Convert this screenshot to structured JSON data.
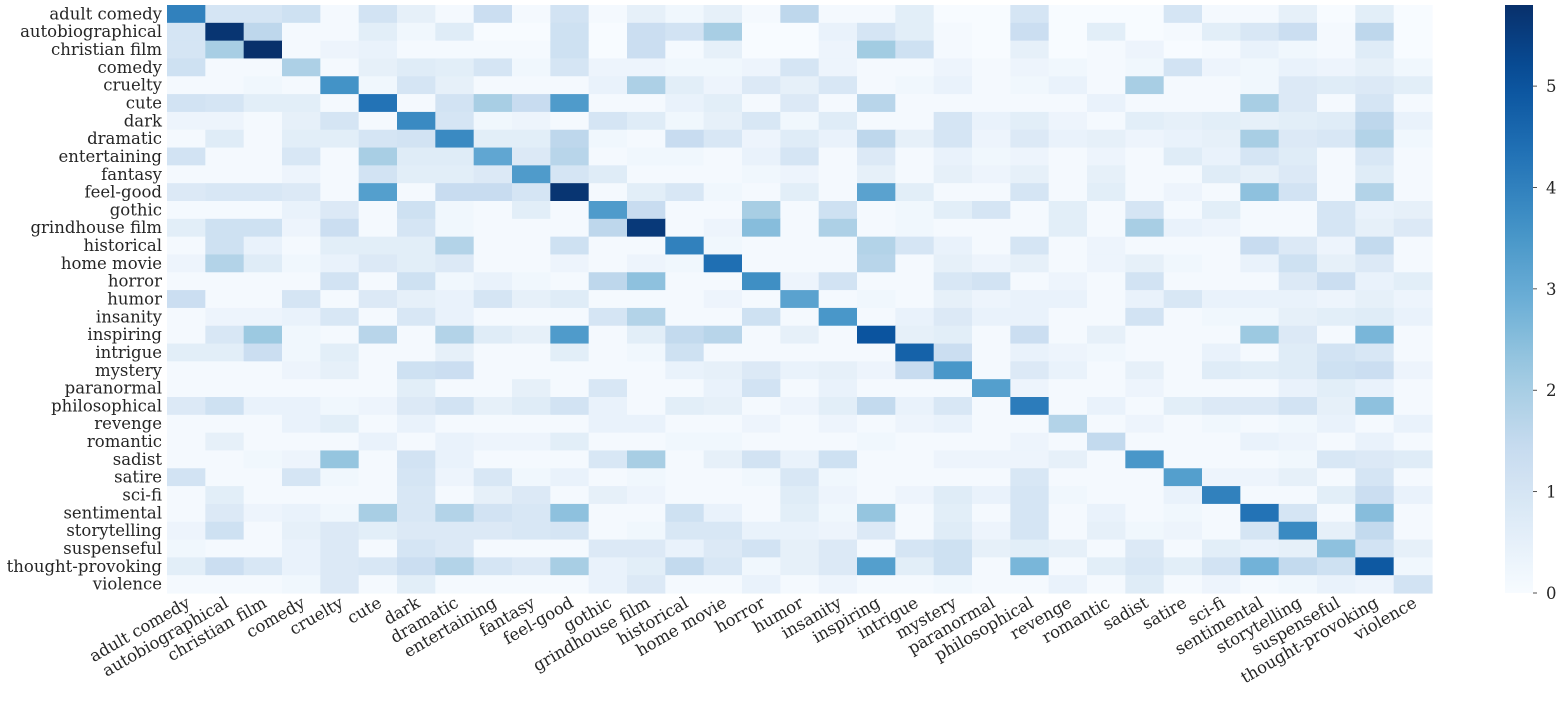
{
  "chart_data": {
    "type": "heatmap",
    "title": "",
    "xlabel": "",
    "ylabel": "",
    "x": [
      "adult comedy",
      "autobiographical",
      "christian film",
      "comedy",
      "cruelty",
      "cute",
      "dark",
      "dramatic",
      "entertaining",
      "fantasy",
      "feel-good",
      "gothic",
      "grindhouse film",
      "historical",
      "home movie",
      "horror",
      "humor",
      "insanity",
      "inspiring",
      "intrigue",
      "mystery",
      "paranormal",
      "philosophical",
      "revenge",
      "romantic",
      "sadist",
      "satire",
      "sci-fi",
      "sentimental",
      "storytelling",
      "suspenseful",
      "thought-provoking",
      "violence"
    ],
    "y": [
      "adult comedy",
      "autobiographical",
      "christian film",
      "comedy",
      "cruelty",
      "cute",
      "dark",
      "dramatic",
      "entertaining",
      "fantasy",
      "feel-good",
      "gothic",
      "grindhouse film",
      "historical",
      "home movie",
      "horror",
      "humor",
      "insanity",
      "inspiring",
      "intrigue",
      "mystery",
      "paranormal",
      "philosophical",
      "revenge",
      "romantic",
      "sadist",
      "satire",
      "sci-fi",
      "sentimental",
      "storytelling",
      "suspenseful",
      "thought-provoking",
      "violence"
    ],
    "values": [
      [
        4.0,
        1.0,
        1.0,
        1.2,
        0.1,
        1.1,
        0.5,
        0.1,
        1.3,
        0.1,
        1.1,
        0.1,
        0.5,
        0.2,
        0.5,
        0.1,
        1.6,
        0.1,
        0.1,
        0.6,
        0.0,
        0.0,
        1.0,
        0.0,
        0.0,
        0.0,
        1.0,
        0.1,
        0.1,
        0.5,
        0.0,
        0.6,
        0.0
      ],
      [
        1.0,
        5.7,
        1.6,
        0.1,
        0.1,
        0.6,
        0.2,
        0.7,
        0.0,
        0.0,
        1.2,
        0.0,
        1.3,
        1.1,
        2.0,
        0.0,
        0.0,
        0.4,
        1.0,
        0.6,
        0.1,
        0.0,
        1.3,
        0.0,
        0.6,
        0.0,
        0.1,
        0.6,
        0.9,
        1.3,
        0.1,
        1.6,
        0.0
      ],
      [
        1.0,
        2.0,
        5.8,
        0.1,
        0.3,
        0.4,
        0.1,
        0.1,
        0.1,
        0.1,
        1.2,
        0.0,
        1.3,
        0.1,
        0.5,
        0.0,
        0.0,
        0.3,
        2.1,
        1.2,
        0.1,
        0.0,
        0.5,
        0.0,
        0.1,
        0.3,
        0.0,
        0.1,
        0.4,
        0.2,
        0.1,
        0.7,
        0.0
      ],
      [
        1.2,
        0.1,
        0.1,
        1.9,
        0.1,
        0.5,
        0.7,
        0.6,
        1.0,
        0.2,
        1.0,
        0.3,
        0.3,
        0.2,
        0.2,
        0.3,
        1.0,
        0.3,
        0.1,
        0.1,
        0.3,
        0.1,
        0.3,
        0.2,
        0.1,
        0.2,
        1.1,
        0.3,
        0.2,
        0.4,
        0.3,
        0.5,
        0.2
      ],
      [
        0.1,
        0.1,
        0.2,
        0.1,
        3.6,
        0.2,
        1.0,
        0.5,
        0.1,
        0.1,
        0.1,
        0.4,
        1.9,
        0.6,
        0.3,
        0.8,
        0.5,
        0.9,
        0.1,
        0.2,
        0.4,
        0.1,
        0.2,
        0.4,
        0.1,
        2.0,
        0.1,
        0.1,
        0.2,
        0.8,
        0.7,
        0.8,
        0.6
      ],
      [
        1.1,
        1.0,
        0.6,
        0.6,
        0.1,
        4.3,
        0.1,
        1.1,
        2.0,
        1.4,
        3.4,
        0.1,
        0.1,
        0.4,
        0.6,
        0.1,
        0.8,
        0.1,
        1.7,
        0.1,
        0.1,
        0.1,
        0.1,
        0.1,
        0.4,
        0.1,
        0.1,
        0.1,
        2.0,
        0.8,
        0.1,
        1.0,
        0.1
      ],
      [
        0.3,
        0.3,
        0.1,
        0.5,
        1.0,
        0.1,
        3.8,
        1.0,
        0.2,
        0.3,
        0.1,
        1.0,
        0.7,
        0.2,
        0.5,
        0.9,
        0.2,
        0.7,
        0.1,
        0.1,
        1.0,
        0.4,
        0.6,
        0.3,
        0.1,
        0.6,
        0.5,
        0.6,
        0.5,
        0.6,
        0.7,
        1.6,
        0.4
      ],
      [
        0.1,
        0.7,
        0.1,
        0.6,
        0.6,
        1.0,
        1.1,
        3.8,
        0.6,
        0.6,
        1.6,
        0.2,
        0.1,
        1.4,
        0.9,
        0.3,
        0.7,
        0.4,
        1.6,
        0.5,
        1.0,
        0.3,
        0.8,
        0.4,
        0.5,
        0.3,
        0.4,
        0.5,
        2.0,
        0.8,
        0.9,
        1.8,
        0.2
      ],
      [
        1.1,
        0.1,
        0.1,
        0.9,
        0.1,
        2.0,
        0.7,
        0.7,
        3.1,
        0.8,
        1.7,
        0.1,
        0.2,
        0.2,
        0.1,
        0.4,
        1.0,
        0.1,
        0.8,
        0.1,
        0.4,
        0.2,
        0.3,
        0.1,
        0.3,
        0.1,
        0.7,
        0.4,
        1.0,
        0.7,
        0.1,
        0.9,
        0.1
      ],
      [
        0.1,
        0.1,
        0.1,
        0.3,
        0.1,
        1.1,
        0.6,
        0.6,
        0.8,
        3.4,
        1.0,
        0.7,
        0.1,
        0.1,
        0.1,
        0.2,
        0.3,
        0.1,
        0.5,
        0.1,
        0.5,
        0.3,
        0.5,
        0.1,
        0.5,
        0.1,
        0.1,
        0.7,
        0.5,
        0.8,
        0.1,
        0.7,
        0.1
      ],
      [
        0.8,
        0.9,
        0.9,
        0.8,
        0.1,
        3.3,
        0.1,
        1.4,
        1.4,
        1.0,
        5.7,
        0.1,
        0.6,
        0.9,
        0.2,
        0.1,
        0.6,
        0.1,
        3.2,
        0.6,
        0.1,
        0.1,
        1.0,
        0.1,
        0.6,
        0.1,
        0.3,
        0.1,
        2.4,
        1.1,
        0.1,
        1.8,
        0.1
      ],
      [
        0.1,
        0.1,
        0.1,
        0.4,
        0.8,
        0.1,
        1.2,
        0.2,
        0.1,
        0.6,
        0.1,
        3.4,
        1.4,
        0.1,
        0.1,
        2.0,
        0.1,
        1.2,
        0.1,
        0.2,
        0.6,
        1.0,
        0.1,
        0.6,
        0.1,
        1.0,
        0.1,
        0.6,
        0.1,
        0.1,
        1.0,
        0.4,
        0.5
      ],
      [
        0.6,
        1.2,
        1.2,
        0.3,
        1.3,
        0.1,
        1.0,
        0.2,
        0.1,
        0.1,
        0.1,
        1.6,
        5.6,
        0.1,
        0.3,
        2.5,
        0.1,
        1.9,
        0.1,
        0.2,
        0.1,
        0.1,
        0.1,
        0.6,
        0.1,
        2.0,
        0.4,
        0.3,
        0.1,
        0.1,
        1.0,
        0.5,
        0.8
      ],
      [
        0.1,
        1.2,
        0.4,
        0.1,
        0.6,
        0.6,
        0.6,
        1.8,
        0.1,
        0.1,
        1.2,
        0.1,
        0.1,
        4.0,
        0.2,
        0.1,
        0.1,
        0.1,
        1.8,
        1.0,
        0.4,
        0.1,
        1.0,
        0.1,
        0.3,
        0.1,
        0.1,
        0.1,
        1.4,
        0.8,
        0.3,
        1.5,
        0.1
      ],
      [
        0.3,
        1.8,
        0.7,
        0.2,
        0.4,
        0.8,
        0.6,
        0.8,
        0.1,
        0.1,
        0.3,
        0.1,
        0.3,
        0.2,
        4.4,
        0.1,
        0.1,
        0.1,
        1.7,
        0.1,
        0.5,
        0.3,
        0.5,
        0.1,
        0.3,
        0.5,
        0.2,
        0.1,
        0.4,
        1.2,
        0.5,
        0.8,
        0.1
      ],
      [
        0.1,
        0.1,
        0.1,
        0.1,
        1.1,
        0.1,
        1.2,
        0.2,
        0.4,
        0.2,
        0.1,
        1.6,
        2.4,
        0.1,
        0.1,
        3.7,
        0.3,
        1.1,
        0.1,
        0.1,
        0.9,
        1.1,
        0.1,
        0.3,
        0.1,
        1.1,
        0.1,
        0.1,
        0.1,
        0.8,
        1.3,
        0.4,
        0.6
      ],
      [
        1.3,
        0.1,
        0.1,
        1.0,
        0.1,
        0.8,
        0.5,
        0.4,
        1.0,
        0.5,
        0.7,
        0.1,
        0.1,
        0.1,
        0.3,
        0.1,
        3.2,
        0.1,
        0.2,
        0.1,
        0.5,
        0.3,
        0.4,
        0.4,
        0.1,
        0.4,
        0.9,
        0.4,
        0.4,
        0.4,
        0.3,
        0.5,
        0.3
      ],
      [
        0.1,
        0.3,
        0.3,
        0.4,
        0.9,
        0.1,
        0.9,
        0.4,
        0.1,
        0.1,
        0.1,
        1.0,
        1.8,
        0.1,
        0.1,
        1.2,
        0.1,
        3.5,
        0.1,
        0.4,
        0.8,
        0.4,
        0.4,
        0.1,
        0.1,
        1.1,
        0.1,
        0.2,
        0.2,
        0.5,
        0.6,
        0.7,
        0.4
      ],
      [
        0.1,
        0.9,
        2.2,
        0.2,
        0.1,
        1.7,
        0.1,
        1.8,
        0.7,
        0.5,
        3.4,
        0.1,
        0.6,
        1.5,
        1.7,
        0.1,
        0.5,
        0.1,
        5.0,
        0.5,
        0.6,
        0.1,
        1.3,
        0.1,
        0.5,
        0.1,
        0.1,
        0.1,
        2.2,
        0.8,
        0.1,
        2.7,
        0.1
      ],
      [
        0.6,
        0.6,
        1.3,
        0.2,
        0.6,
        0.1,
        0.1,
        0.5,
        0.1,
        0.1,
        0.6,
        0.1,
        0.2,
        1.2,
        0.1,
        0.1,
        0.1,
        0.1,
        0.1,
        4.7,
        1.3,
        0.1,
        0.4,
        0.3,
        0.2,
        0.1,
        0.1,
        0.4,
        0.1,
        0.7,
        1.1,
        0.9,
        0.1
      ],
      [
        0.1,
        0.1,
        0.1,
        0.3,
        0.5,
        0.1,
        1.2,
        1.3,
        0.1,
        0.1,
        0.1,
        0.1,
        0.1,
        0.4,
        0.5,
        0.8,
        0.4,
        0.5,
        0.3,
        1.4,
        3.5,
        0.1,
        0.8,
        0.4,
        0.1,
        0.5,
        0.1,
        0.7,
        0.6,
        0.7,
        1.2,
        1.3,
        0.3
      ],
      [
        0.1,
        0.1,
        0.1,
        0.1,
        0.1,
        0.1,
        0.6,
        0.1,
        0.1,
        0.5,
        0.1,
        0.9,
        0.1,
        0.1,
        0.4,
        1.1,
        0.1,
        0.4,
        0.1,
        0.1,
        0.1,
        3.3,
        0.3,
        0.1,
        0.1,
        0.3,
        0.1,
        0.1,
        0.1,
        0.4,
        0.6,
        0.4,
        0.1
      ],
      [
        0.8,
        1.2,
        0.4,
        0.4,
        0.2,
        0.3,
        0.8,
        1.1,
        0.5,
        0.7,
        1.1,
        0.4,
        0.1,
        0.6,
        0.5,
        0.1,
        0.3,
        0.6,
        1.5,
        0.4,
        0.9,
        0.1,
        4.1,
        0.1,
        0.4,
        0.1,
        0.6,
        0.8,
        0.8,
        1.1,
        0.5,
        2.4,
        0.1
      ],
      [
        0.1,
        0.1,
        0.1,
        0.4,
        0.6,
        0.1,
        0.4,
        0.1,
        0.1,
        0.1,
        0.1,
        0.4,
        0.4,
        0.1,
        0.1,
        0.3,
        0.1,
        0.3,
        0.1,
        0.3,
        0.4,
        0.1,
        0.1,
        1.8,
        0.1,
        0.3,
        0.1,
        0.2,
        0.1,
        0.2,
        0.4,
        0.1,
        0.4
      ],
      [
        0.1,
        0.5,
        0.1,
        0.1,
        0.1,
        0.4,
        0.1,
        0.4,
        0.3,
        0.3,
        0.6,
        0.1,
        0.1,
        0.2,
        0.2,
        0.1,
        0.1,
        0.1,
        0.2,
        0.1,
        0.1,
        0.1,
        0.3,
        0.1,
        1.5,
        0.1,
        0.1,
        0.1,
        0.4,
        0.3,
        0.1,
        0.4,
        0.1
      ],
      [
        0.1,
        0.1,
        0.2,
        0.3,
        2.3,
        0.1,
        1.1,
        0.4,
        0.1,
        0.1,
        0.1,
        0.9,
        2.0,
        0.1,
        0.5,
        1.1,
        0.4,
        1.2,
        0.1,
        0.1,
        0.3,
        0.3,
        0.3,
        0.5,
        0.1,
        3.5,
        0.1,
        0.1,
        0.1,
        0.2,
        0.9,
        0.8,
        0.7
      ],
      [
        1.1,
        0.1,
        0.1,
        1.0,
        0.2,
        0.1,
        1.0,
        0.3,
        0.9,
        0.2,
        0.4,
        0.1,
        0.2,
        0.1,
        0.1,
        0.2,
        0.9,
        0.2,
        0.1,
        0.1,
        0.1,
        0.1,
        0.9,
        0.1,
        0.1,
        0.1,
        3.3,
        0.3,
        0.3,
        0.5,
        0.1,
        1.0,
        0.1
      ],
      [
        0.1,
        0.6,
        0.1,
        0.1,
        0.1,
        0.1,
        0.9,
        0.1,
        0.5,
        0.8,
        0.1,
        0.5,
        0.3,
        0.1,
        0.1,
        0.1,
        0.7,
        0.3,
        0.1,
        0.3,
        0.7,
        0.4,
        1.0,
        0.2,
        0.1,
        0.1,
        0.4,
        4.0,
        0.1,
        0.1,
        0.6,
        1.3,
        0.4
      ],
      [
        0.1,
        0.8,
        0.3,
        0.4,
        0.2,
        2.0,
        0.9,
        1.8,
        1.1,
        0.9,
        2.4,
        0.1,
        0.1,
        1.2,
        0.4,
        0.1,
        0.6,
        0.2,
        2.3,
        0.1,
        0.6,
        0.1,
        1.0,
        0.1,
        0.4,
        0.1,
        0.2,
        0.1,
        4.3,
        1.0,
        0.1,
        2.5,
        0.1
      ],
      [
        0.3,
        1.2,
        0.1,
        0.5,
        0.8,
        0.6,
        0.8,
        0.8,
        0.8,
        0.9,
        1.0,
        0.1,
        0.2,
        0.9,
        0.9,
        0.4,
        0.4,
        0.3,
        0.8,
        0.1,
        0.7,
        0.3,
        1.0,
        0.1,
        0.5,
        0.2,
        0.3,
        0.1,
        1.0,
        3.8,
        0.5,
        1.5,
        0.1
      ],
      [
        0.2,
        0.1,
        0.1,
        0.4,
        0.8,
        0.1,
        1.0,
        0.8,
        0.1,
        0.1,
        0.1,
        0.8,
        0.8,
        0.4,
        0.8,
        1.1,
        0.5,
        0.8,
        0.1,
        1.0,
        1.2,
        0.5,
        0.6,
        0.5,
        0.1,
        0.8,
        0.1,
        0.6,
        0.4,
        0.5,
        2.4,
        1.1,
        0.5
      ],
      [
        0.6,
        1.3,
        0.9,
        0.4,
        0.8,
        0.9,
        1.3,
        1.8,
        1.0,
        0.8,
        2.0,
        0.4,
        0.6,
        1.5,
        0.9,
        0.2,
        0.5,
        0.8,
        3.3,
        0.6,
        1.2,
        0.1,
        2.7,
        0.1,
        0.6,
        0.9,
        0.6,
        1.1,
        2.8,
        1.5,
        1.2,
        4.9,
        0.2
      ],
      [
        0.1,
        0.1,
        0.1,
        0.2,
        0.8,
        0.1,
        0.6,
        0.1,
        0.1,
        0.1,
        0.1,
        0.4,
        0.8,
        0.1,
        0.1,
        0.4,
        0.1,
        0.3,
        0.1,
        0.1,
        0.2,
        0.1,
        0.1,
        0.4,
        0.1,
        0.7,
        0.1,
        0.3,
        0.1,
        0.2,
        0.4,
        0.3,
        1.1
      ]
    ],
    "vmin": 0,
    "vmax": 5.8,
    "colormap": "Blues",
    "colorbar": {
      "ticks": [
        0,
        1,
        2,
        3,
        4,
        5
      ],
      "placement": "right"
    },
    "grid": false,
    "legend": "none"
  }
}
